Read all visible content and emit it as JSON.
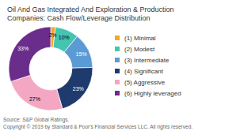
{
  "chart_data": {
    "type": "pie",
    "title": "Oil And Gas Integrated And Exploration & Production",
    "subtitle": "Companies: Cash Flow/Leverage Distribution",
    "categories": [
      "(1) Minimal",
      "(2) Modest",
      "(3) Intermediate",
      "(4) Significant",
      "(5) Aggressive",
      "(6) Highly leveraged"
    ],
    "values": [
      2,
      10,
      15,
      23,
      27,
      33
    ],
    "value_labels": [
      "2%",
      "10%",
      "15%",
      "23%",
      "27%",
      "33%"
    ],
    "data_labels": true,
    "colors": [
      "#F5A623",
      "#45C4B0",
      "#5B9BD5",
      "#1F3B6E",
      "#F4A7C3",
      "#6B2D8B"
    ],
    "legend": "right",
    "annotations": [
      "Source: S&P Global Ratings.",
      "Copyright © 2019 by Standard & Poor's Financial Services LLC. All rights reserved."
    ]
  }
}
